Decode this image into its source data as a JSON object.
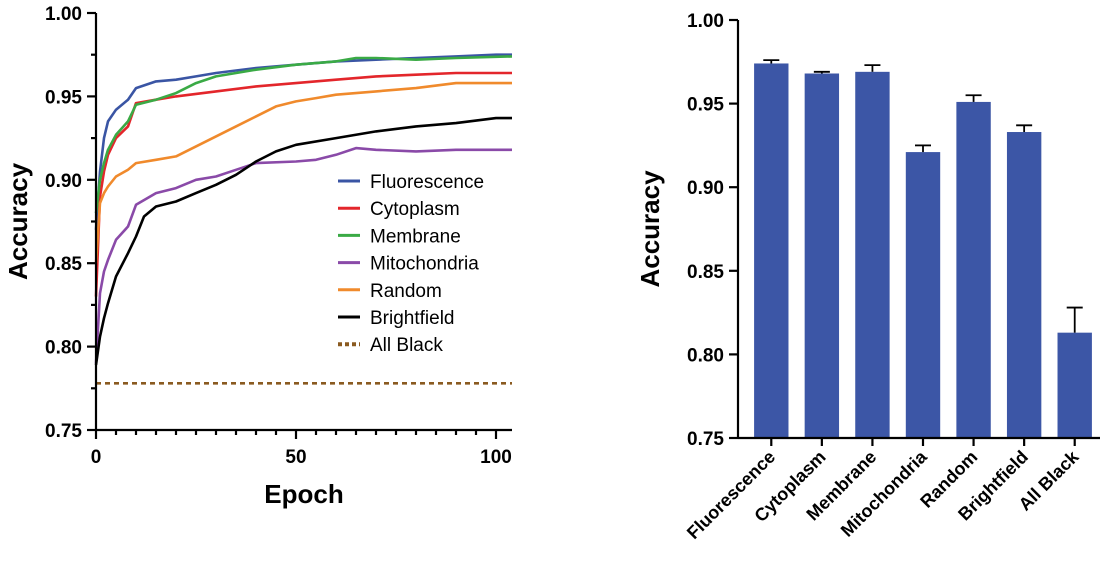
{
  "chart_data": [
    {
      "type": "line",
      "xlabel": "Epoch",
      "ylabel": "Accuracy",
      "xlim": [
        0,
        104
      ],
      "ylim": [
        0.75,
        1.0
      ],
      "x_ticks": [
        "0",
        "50",
        "100"
      ],
      "y_ticks": [
        "0.75",
        "0.80",
        "0.85",
        "0.90",
        "0.95",
        "1.00"
      ],
      "legend_position": "right-center",
      "series": [
        {
          "name": "Fluorescence",
          "color": "#3a55a4",
          "style": "solid",
          "points": [
            [
              0,
              0.87
            ],
            [
              1,
              0.905
            ],
            [
              2,
              0.925
            ],
            [
              3,
              0.935
            ],
            [
              5,
              0.942
            ],
            [
              8,
              0.948
            ],
            [
              10,
              0.955
            ],
            [
              15,
              0.959
            ],
            [
              20,
              0.96
            ],
            [
              25,
              0.962
            ],
            [
              30,
              0.964
            ],
            [
              40,
              0.967
            ],
            [
              50,
              0.969
            ],
            [
              60,
              0.971
            ],
            [
              70,
              0.972
            ],
            [
              80,
              0.973
            ],
            [
              90,
              0.974
            ],
            [
              100,
              0.975
            ],
            [
              104,
              0.975
            ]
          ]
        },
        {
          "name": "Cytoplasm",
          "color": "#e3262b",
          "style": "solid",
          "points": [
            [
              0,
              0.83
            ],
            [
              1,
              0.89
            ],
            [
              2,
              0.905
            ],
            [
              3,
              0.915
            ],
            [
              5,
              0.925
            ],
            [
              8,
              0.932
            ],
            [
              10,
              0.946
            ],
            [
              15,
              0.948
            ],
            [
              20,
              0.95
            ],
            [
              30,
              0.953
            ],
            [
              40,
              0.956
            ],
            [
              50,
              0.958
            ],
            [
              60,
              0.96
            ],
            [
              70,
              0.962
            ],
            [
              80,
              0.963
            ],
            [
              90,
              0.964
            ],
            [
              104,
              0.964
            ]
          ]
        },
        {
          "name": "Membrane",
          "color": "#3aaa45",
          "style": "solid",
          "points": [
            [
              0,
              0.88
            ],
            [
              1,
              0.9
            ],
            [
              2,
              0.91
            ],
            [
              3,
              0.918
            ],
            [
              5,
              0.927
            ],
            [
              8,
              0.935
            ],
            [
              10,
              0.945
            ],
            [
              15,
              0.948
            ],
            [
              20,
              0.952
            ],
            [
              25,
              0.958
            ],
            [
              30,
              0.962
            ],
            [
              40,
              0.966
            ],
            [
              50,
              0.969
            ],
            [
              60,
              0.971
            ],
            [
              65,
              0.973
            ],
            [
              70,
              0.973
            ],
            [
              80,
              0.972
            ],
            [
              90,
              0.973
            ],
            [
              104,
              0.974
            ]
          ]
        },
        {
          "name": "Mitochondria",
          "color": "#8a4aa8",
          "style": "solid",
          "points": [
            [
              0,
              0.79
            ],
            [
              1,
              0.832
            ],
            [
              2,
              0.845
            ],
            [
              3,
              0.852
            ],
            [
              5,
              0.864
            ],
            [
              8,
              0.872
            ],
            [
              10,
              0.885
            ],
            [
              15,
              0.892
            ],
            [
              20,
              0.895
            ],
            [
              25,
              0.9
            ],
            [
              30,
              0.902
            ],
            [
              35,
              0.906
            ],
            [
              40,
              0.91
            ],
            [
              50,
              0.911
            ],
            [
              55,
              0.912
            ],
            [
              60,
              0.915
            ],
            [
              65,
              0.919
            ],
            [
              70,
              0.918
            ],
            [
              80,
              0.917
            ],
            [
              90,
              0.918
            ],
            [
              104,
              0.918
            ]
          ]
        },
        {
          "name": "Random",
          "color": "#f08a2c",
          "style": "solid",
          "points": [
            [
              0,
              0.85
            ],
            [
              1,
              0.886
            ],
            [
              2,
              0.892
            ],
            [
              3,
              0.896
            ],
            [
              5,
              0.902
            ],
            [
              8,
              0.906
            ],
            [
              10,
              0.91
            ],
            [
              15,
              0.912
            ],
            [
              20,
              0.914
            ],
            [
              25,
              0.92
            ],
            [
              30,
              0.926
            ],
            [
              35,
              0.932
            ],
            [
              40,
              0.938
            ],
            [
              45,
              0.944
            ],
            [
              50,
              0.947
            ],
            [
              55,
              0.949
            ],
            [
              60,
              0.951
            ],
            [
              70,
              0.953
            ],
            [
              80,
              0.955
            ],
            [
              90,
              0.958
            ],
            [
              104,
              0.958
            ]
          ]
        },
        {
          "name": "Brightfield",
          "color": "#000000",
          "style": "solid",
          "points": [
            [
              0,
              0.789
            ],
            [
              1,
              0.806
            ],
            [
              2,
              0.817
            ],
            [
              3,
              0.826
            ],
            [
              5,
              0.842
            ],
            [
              8,
              0.856
            ],
            [
              10,
              0.866
            ],
            [
              12,
              0.878
            ],
            [
              15,
              0.884
            ],
            [
              20,
              0.887
            ],
            [
              25,
              0.892
            ],
            [
              30,
              0.897
            ],
            [
              35,
              0.903
            ],
            [
              40,
              0.911
            ],
            [
              45,
              0.917
            ],
            [
              50,
              0.921
            ],
            [
              60,
              0.925
            ],
            [
              70,
              0.929
            ],
            [
              80,
              0.932
            ],
            [
              90,
              0.934
            ],
            [
              100,
              0.937
            ],
            [
              104,
              0.937
            ]
          ]
        },
        {
          "name": "All Black",
          "color": "#8a5a20",
          "style": "dashed",
          "points": [
            [
              0,
              0.778
            ],
            [
              104,
              0.778
            ]
          ]
        }
      ]
    },
    {
      "type": "bar",
      "ylabel": "Accuracy",
      "ylim": [
        0.75,
        1.0
      ],
      "y_ticks": [
        "0.75",
        "0.80",
        "0.85",
        "0.90",
        "0.95",
        "1.00"
      ],
      "color": "#3c56a6",
      "categories": [
        "Fluorescence",
        "Cytoplasm",
        "Membrane",
        "Mitochondria",
        "Random",
        "Brightfield",
        "All Black"
      ],
      "values": [
        0.974,
        0.968,
        0.969,
        0.921,
        0.951,
        0.933,
        0.813
      ],
      "errors": [
        0.002,
        0.001,
        0.004,
        0.004,
        0.004,
        0.004,
        0.015
      ]
    }
  ]
}
